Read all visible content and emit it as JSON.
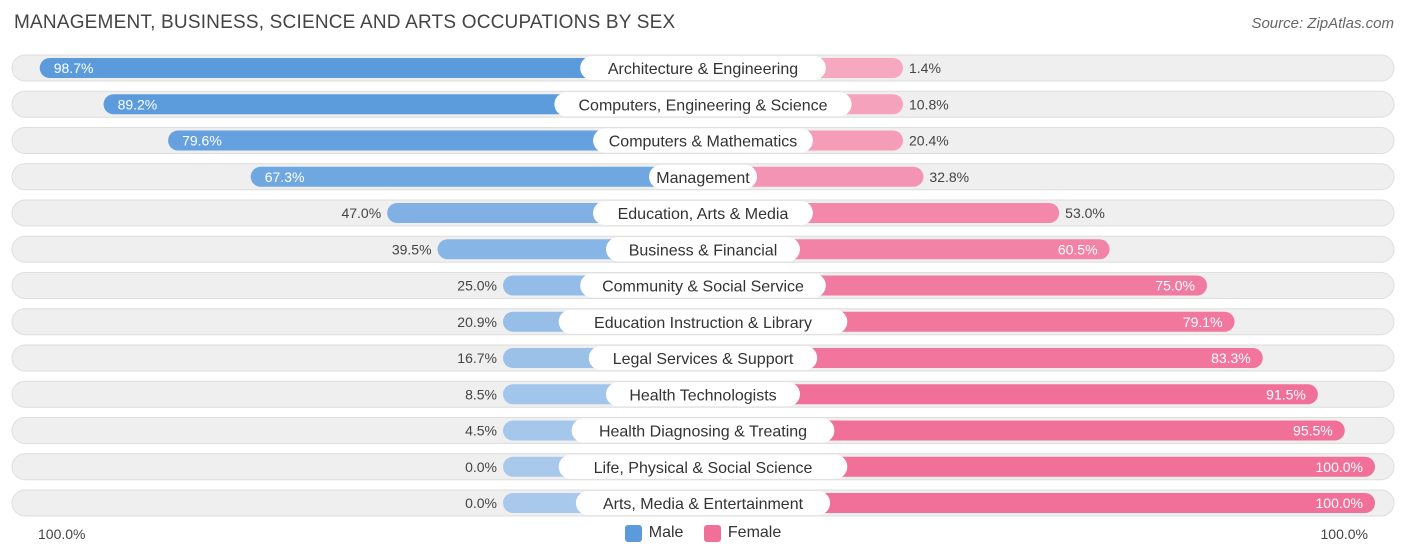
{
  "title": "MANAGEMENT, BUSINESS, SCIENCE AND ARTS OCCUPATIONS BY SEX",
  "source": "Source: ZipAtlas.com",
  "colors": {
    "male_strong": "#5b9bdc",
    "male_light": "#a9c9ec",
    "female_strong": "#f0709a",
    "female_light": "#f6a9c2",
    "track": "#efefef",
    "track_border": "#dedede"
  },
  "legend": {
    "male_label": "Male",
    "female_label": "Female"
  },
  "axis": {
    "left_label": "100.0%",
    "right_label": "100.0%"
  },
  "chart_data": {
    "type": "bar",
    "orientation": "horizontal-diverging",
    "title": "MANAGEMENT, BUSINESS, SCIENCE AND ARTS OCCUPATIONS BY SEX",
    "xlim": [
      -100,
      100
    ],
    "categories": [
      "Architecture & Engineering",
      "Computers, Engineering & Science",
      "Computers & Mathematics",
      "Management",
      "Education, Arts & Media",
      "Business & Financial",
      "Community & Social Service",
      "Education Instruction & Library",
      "Legal Services & Support",
      "Health Technologists",
      "Health Diagnosing & Treating",
      "Life, Physical & Social Science",
      "Arts, Media & Entertainment"
    ],
    "series": [
      {
        "name": "Male",
        "values": [
          98.7,
          89.2,
          79.6,
          67.3,
          47.0,
          39.5,
          25.0,
          20.9,
          16.7,
          8.5,
          4.5,
          0.0,
          0.0
        ],
        "labels": [
          "98.7%",
          "89.2%",
          "79.6%",
          "67.3%",
          "47.0%",
          "39.5%",
          "25.0%",
          "20.9%",
          "16.7%",
          "8.5%",
          "4.5%",
          "0.0%",
          "0.0%"
        ]
      },
      {
        "name": "Female",
        "values": [
          1.4,
          10.8,
          20.4,
          32.8,
          53.0,
          60.5,
          75.0,
          79.1,
          83.3,
          91.5,
          95.5,
          100.0,
          100.0
        ],
        "labels": [
          "1.4%",
          "10.8%",
          "20.4%",
          "32.8%",
          "53.0%",
          "60.5%",
          "75.0%",
          "79.1%",
          "83.3%",
          "91.5%",
          "95.5%",
          "100.0%",
          "100.0%"
        ]
      }
    ]
  }
}
